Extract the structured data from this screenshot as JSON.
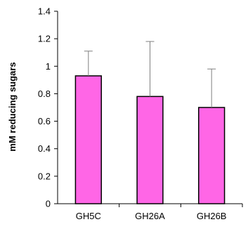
{
  "chart_data": {
    "type": "bar",
    "title": "",
    "xlabel": "",
    "ylabel": "mM reducing sugars",
    "categories": [
      "GH5C",
      "GH26A",
      "GH26B"
    ],
    "values": [
      0.93,
      0.78,
      0.7
    ],
    "error_bars_upper": [
      0.18,
      0.4,
      0.28
    ],
    "ylim": [
      0,
      1.4
    ],
    "yticks": [
      0,
      0.2,
      0.4,
      0.6,
      0.8,
      1,
      1.2,
      1.4
    ],
    "ytick_labels": [
      "0",
      "0.2",
      "0.4",
      "0.6",
      "0.8",
      "1",
      "1.2",
      "1.4"
    ],
    "grid": false,
    "legend": "none",
    "colors": {
      "bar_fill": "#ff66e6",
      "bar_stroke": "#000000",
      "axis": "#000000",
      "error_bar": "#7f7f7f"
    }
  }
}
